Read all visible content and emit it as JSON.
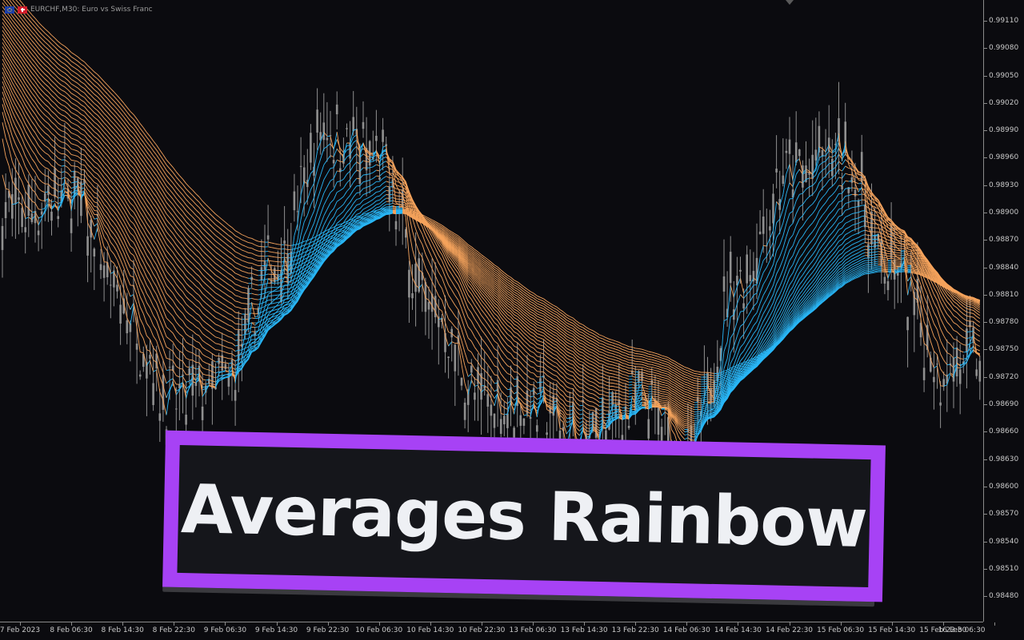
{
  "header": {
    "symbol_text": "EURCHF,M30: Euro vs Swiss Franc"
  },
  "price_axis": {
    "labels": [
      "0.99110",
      "0.99080",
      "0.99050",
      "0.99020",
      "0.98990",
      "0.98960",
      "0.98930",
      "0.98900",
      "0.98870",
      "0.98840",
      "0.98810",
      "0.98780",
      "0.98750",
      "0.98720",
      "0.98690",
      "0.98660",
      "0.98630",
      "0.98600",
      "0.98570",
      "0.98540",
      "0.98510",
      "0.98480"
    ]
  },
  "time_axis": {
    "labels": [
      "7 Feb 2023",
      "8 Feb 06:30",
      "8 Feb 14:30",
      "8 Feb 22:30",
      "9 Feb 06:30",
      "9 Feb 14:30",
      "9 Feb 22:30",
      "10 Feb 06:30",
      "10 Feb 14:30",
      "10 Feb 22:30",
      "13 Feb 06:30",
      "13 Feb 14:30",
      "13 Feb 22:30",
      "14 Feb 06:30",
      "14 Feb 14:30",
      "14 Feb 22:30",
      "15 Feb 06:30",
      "15 Feb 14:30",
      "15 Feb 22:30",
      "16 Feb 06:30"
    ]
  },
  "colors": {
    "background": "#0b0b0f",
    "bullish_ribbon": "#29b6f6",
    "bearish_ribbon": "#f5a35c",
    "candles": "#8f8f8f",
    "banner_border": "#a742f5",
    "banner_fill": "#15161b",
    "banner_text": "#eef0f4"
  },
  "banner": {
    "title": "Averages Rainbow"
  },
  "chart_data": {
    "type": "line",
    "title": "",
    "xlabel": "",
    "ylabel": "",
    "ylim": [
      0.9847,
      0.99125
    ],
    "x": [
      "7 Feb 2023",
      "8 Feb 06:30",
      "8 Feb 14:30",
      "8 Feb 22:30",
      "9 Feb 06:30",
      "9 Feb 14:30",
      "9 Feb 22:30",
      "10 Feb 06:30",
      "10 Feb 14:30",
      "10 Feb 22:30",
      "13 Feb 06:30",
      "13 Feb 14:30",
      "13 Feb 22:30",
      "14 Feb 06:30",
      "14 Feb 14:30",
      "14 Feb 22:30",
      "15 Feb 06:30",
      "15 Feb 14:30",
      "15 Feb 22:30",
      "16 Feb 06:30"
    ],
    "series": [
      {
        "values": [
          0.989,
          0.9892,
          0.988,
          0.987,
          0.9872,
          0.9885,
          0.9899,
          0.9895,
          0.988,
          0.987,
          0.987,
          0.9866,
          0.987,
          0.9864,
          0.9883,
          0.9894,
          0.9896,
          0.9884,
          0.9874,
          0.9875
        ]
      }
    ]
  }
}
